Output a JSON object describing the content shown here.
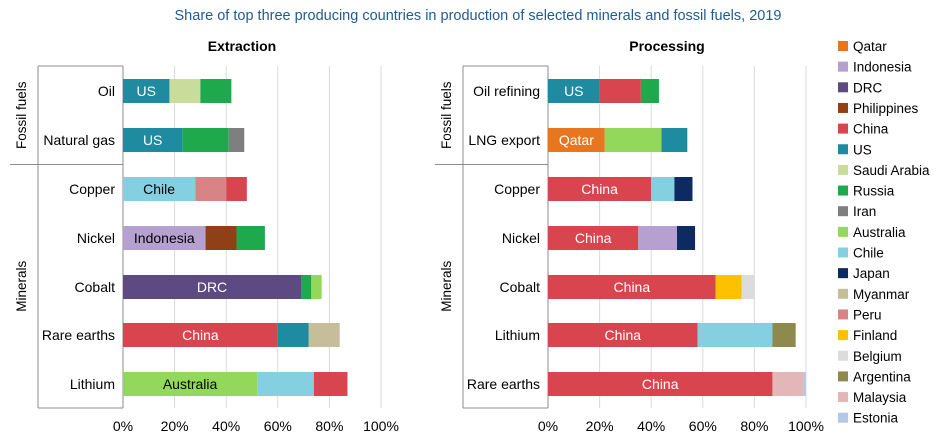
{
  "title": "Share of top three producing countries in production of selected minerals and fossil fuels, 2019",
  "colors": {
    "Qatar": "#e8761f",
    "Indonesia": "#b6a0d0",
    "DRC": "#5e4a82",
    "Philippines": "#8f4115",
    "China": "#d9454f",
    "US": "#1e8ba0",
    "Saudi Arabia": "#c9dc9b",
    "Russia": "#1fa94d",
    "Iran": "#7f7f7f",
    "Australia": "#93d85a",
    "Chile": "#84cfe0",
    "Japan": "#0e2a63",
    "Myanmar": "#c6bd9a",
    "Peru": "#d98484",
    "Finland": "#ffc000",
    "Belgium": "#dcdcdc",
    "Argentina": "#8e8a4e",
    "Malaysia": "#e3b7b7",
    "Estonia": "#b3c8e8"
  },
  "legend": [
    "Qatar",
    "Indonesia",
    "DRC",
    "Philippines",
    "China",
    "US",
    "Saudi Arabia",
    "Russia",
    "Iran",
    "Australia",
    "Chile",
    "Japan",
    "Myanmar",
    "Peru",
    "Finland",
    "Belgium",
    "Argentina",
    "Malaysia",
    "Estonia"
  ],
  "chart_data": [
    {
      "type": "bar",
      "orientation": "horizontal",
      "stacked": true,
      "title": "Extraction",
      "xlim": [
        0,
        100
      ],
      "xticks": [
        "0%",
        "20%",
        "40%",
        "60%",
        "80%",
        "100%"
      ],
      "groups": [
        {
          "label": "Fossil fuels",
          "rows": [
            "Oil",
            "Natural gas"
          ]
        },
        {
          "label": "Minerals",
          "rows": [
            "Copper",
            "Nickel",
            "Cobalt",
            "Rare earths",
            "Lithium"
          ]
        }
      ],
      "categories": [
        "Oil",
        "Natural gas",
        "Copper",
        "Nickel",
        "Cobalt",
        "Rare earths",
        "Lithium"
      ],
      "bars": [
        {
          "category": "Oil",
          "segments": [
            {
              "country": "US",
              "value": 18,
              "label": "US"
            },
            {
              "country": "Saudi Arabia",
              "value": 12
            },
            {
              "country": "Russia",
              "value": 12
            }
          ]
        },
        {
          "category": "Natural gas",
          "segments": [
            {
              "country": "US",
              "value": 23,
              "label": "US"
            },
            {
              "country": "Russia",
              "value": 18
            },
            {
              "country": "Iran",
              "value": 6
            }
          ]
        },
        {
          "category": "Copper",
          "segments": [
            {
              "country": "Chile",
              "value": 28,
              "label": "Chile"
            },
            {
              "country": "Peru",
              "value": 12
            },
            {
              "country": "China",
              "value": 8
            }
          ]
        },
        {
          "category": "Nickel",
          "segments": [
            {
              "country": "Indonesia",
              "value": 32,
              "label": "Indonesia"
            },
            {
              "country": "Philippines",
              "value": 12
            },
            {
              "country": "Russia",
              "value": 11
            }
          ]
        },
        {
          "category": "Cobalt",
          "segments": [
            {
              "country": "DRC",
              "value": 69,
              "label": "DRC"
            },
            {
              "country": "Russia",
              "value": 4
            },
            {
              "country": "Australia",
              "value": 4
            }
          ]
        },
        {
          "category": "Rare earths",
          "segments": [
            {
              "country": "China",
              "value": 60,
              "label": "China"
            },
            {
              "country": "US",
              "value": 12
            },
            {
              "country": "Myanmar",
              "value": 12
            }
          ]
        },
        {
          "category": "Lithium",
          "segments": [
            {
              "country": "Australia",
              "value": 52,
              "label": "Australia"
            },
            {
              "country": "Chile",
              "value": 22
            },
            {
              "country": "China",
              "value": 13
            }
          ]
        }
      ]
    },
    {
      "type": "bar",
      "orientation": "horizontal",
      "stacked": true,
      "title": "Processing",
      "xlim": [
        0,
        100
      ],
      "xticks": [
        "0%",
        "20%",
        "40%",
        "60%",
        "80%",
        "100%"
      ],
      "groups": [
        {
          "label": "Fossil fuels",
          "rows": [
            "Oil refining",
            "LNG export"
          ]
        },
        {
          "label": "Minerals",
          "rows": [
            "Copper",
            "Nickel",
            "Cobalt",
            "Lithium",
            "Rare earths"
          ]
        }
      ],
      "categories": [
        "Oil refining",
        "LNG export",
        "Copper",
        "Nickel",
        "Cobalt",
        "Lithium",
        "Rare earths"
      ],
      "bars": [
        {
          "category": "Oil refining",
          "segments": [
            {
              "country": "US",
              "value": 20,
              "label": "US"
            },
            {
              "country": "China",
              "value": 16
            },
            {
              "country": "Russia",
              "value": 7
            }
          ]
        },
        {
          "category": "LNG export",
          "segments": [
            {
              "country": "Qatar",
              "value": 22,
              "label": "Qatar"
            },
            {
              "country": "Australia",
              "value": 22
            },
            {
              "country": "US",
              "value": 10
            }
          ]
        },
        {
          "category": "Copper",
          "segments": [
            {
              "country": "China",
              "value": 40,
              "label": "China"
            },
            {
              "country": "Chile",
              "value": 9
            },
            {
              "country": "Japan",
              "value": 7
            }
          ]
        },
        {
          "category": "Nickel",
          "segments": [
            {
              "country": "China",
              "value": 35,
              "label": "China"
            },
            {
              "country": "Indonesia",
              "value": 15
            },
            {
              "country": "Japan",
              "value": 7
            }
          ]
        },
        {
          "category": "Cobalt",
          "segments": [
            {
              "country": "China",
              "value": 65,
              "label": "China"
            },
            {
              "country": "Finland",
              "value": 10
            },
            {
              "country": "Belgium",
              "value": 5
            }
          ]
        },
        {
          "category": "Lithium",
          "segments": [
            {
              "country": "China",
              "value": 58,
              "label": "China"
            },
            {
              "country": "Chile",
              "value": 29
            },
            {
              "country": "Argentina",
              "value": 9
            }
          ]
        },
        {
          "category": "Rare earths",
          "segments": [
            {
              "country": "China",
              "value": 87,
              "label": "China"
            },
            {
              "country": "Malaysia",
              "value": 12
            },
            {
              "country": "Estonia",
              "value": 1
            }
          ]
        }
      ]
    }
  ]
}
